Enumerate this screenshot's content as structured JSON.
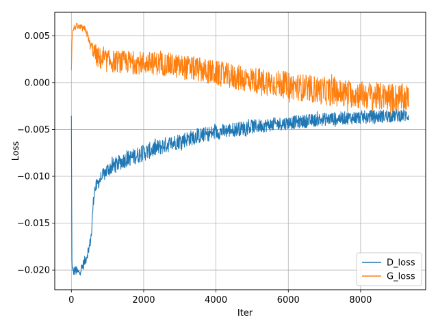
{
  "chart_data": {
    "type": "line",
    "title": "",
    "xlabel": "Iter",
    "ylabel": "Loss",
    "xlim": [
      -460,
      9800
    ],
    "ylim": [
      -0.0221,
      0.0075
    ],
    "x_ticks": [
      0,
      2000,
      4000,
      6000,
      8000
    ],
    "x_tick_labels": [
      "0",
      "2000",
      "4000",
      "6000",
      "8000"
    ],
    "y_ticks": [
      -0.02,
      -0.015,
      -0.01,
      -0.005,
      0.0,
      0.005
    ],
    "y_tick_labels": [
      "−0.020",
      "−0.015",
      "−0.010",
      "−0.005",
      "0.000",
      "0.005"
    ],
    "grid": true,
    "legend_position": "lower-right",
    "series": [
      {
        "name": "D_loss",
        "color": "#1f77b4",
        "points": [
          [
            0,
            -0.0037
          ],
          [
            15,
            -0.019
          ],
          [
            40,
            -0.0203
          ],
          [
            100,
            -0.02
          ],
          [
            200,
            -0.0203
          ],
          [
            300,
            -0.0197
          ],
          [
            400,
            -0.0188
          ],
          [
            500,
            -0.0175
          ],
          [
            560,
            -0.016
          ],
          [
            600,
            -0.013
          ],
          [
            640,
            -0.0115
          ],
          [
            700,
            -0.011
          ],
          [
            800,
            -0.0103
          ],
          [
            1000,
            -0.0093
          ],
          [
            1200,
            -0.0088
          ],
          [
            1500,
            -0.0082
          ],
          [
            2000,
            -0.0075
          ],
          [
            2500,
            -0.0068
          ],
          [
            3000,
            -0.0062
          ],
          [
            3500,
            -0.0057
          ],
          [
            4000,
            -0.0053
          ],
          [
            4500,
            -0.005
          ],
          [
            5000,
            -0.0047
          ],
          [
            5500,
            -0.0045
          ],
          [
            6000,
            -0.0043
          ],
          [
            6500,
            -0.0041
          ],
          [
            7000,
            -0.0039
          ],
          [
            7500,
            -0.0038
          ],
          [
            8000,
            -0.0037
          ],
          [
            8500,
            -0.0036
          ],
          [
            9000,
            -0.0035
          ],
          [
            9330,
            -0.0035
          ]
        ],
        "noise": [
          [
            0,
            0.0005
          ],
          [
            600,
            0.0006
          ],
          [
            700,
            0.0007
          ],
          [
            1000,
            0.0008
          ],
          [
            2000,
            0.0009
          ],
          [
            4000,
            0.0008
          ],
          [
            6000,
            0.0007
          ],
          [
            8000,
            0.0007
          ],
          [
            9330,
            0.0007
          ]
        ]
      },
      {
        "name": "G_loss",
        "color": "#ff7f0e",
        "points": [
          [
            0,
            0.0013
          ],
          [
            20,
            0.005
          ],
          [
            60,
            0.0058
          ],
          [
            150,
            0.006
          ],
          [
            300,
            0.0058
          ],
          [
            400,
            0.0056
          ],
          [
            450,
            0.005
          ],
          [
            520,
            0.004
          ],
          [
            600,
            0.0035
          ],
          [
            700,
            0.0028
          ],
          [
            800,
            0.0025
          ],
          [
            1000,
            0.0023
          ],
          [
            1500,
            0.0022
          ],
          [
            2000,
            0.0021
          ],
          [
            2500,
            0.002
          ],
          [
            3000,
            0.0017
          ],
          [
            3500,
            0.0014
          ],
          [
            4000,
            0.001
          ],
          [
            4500,
            0.0006
          ],
          [
            5000,
            0.0003
          ],
          [
            5500,
            0.0
          ],
          [
            6000,
            -0.0003
          ],
          [
            6500,
            -0.0006
          ],
          [
            7000,
            -0.0009
          ],
          [
            7500,
            -0.0011
          ],
          [
            8000,
            -0.0013
          ],
          [
            8500,
            -0.0015
          ],
          [
            9000,
            -0.0016
          ],
          [
            9330,
            -0.0017
          ]
        ],
        "noise": [
          [
            0,
            0.0003
          ],
          [
            500,
            0.0004
          ],
          [
            700,
            0.0012
          ],
          [
            1500,
            0.0012
          ],
          [
            3000,
            0.0013
          ],
          [
            5000,
            0.0014
          ],
          [
            7000,
            0.0015
          ],
          [
            9330,
            0.0015
          ]
        ]
      }
    ]
  }
}
